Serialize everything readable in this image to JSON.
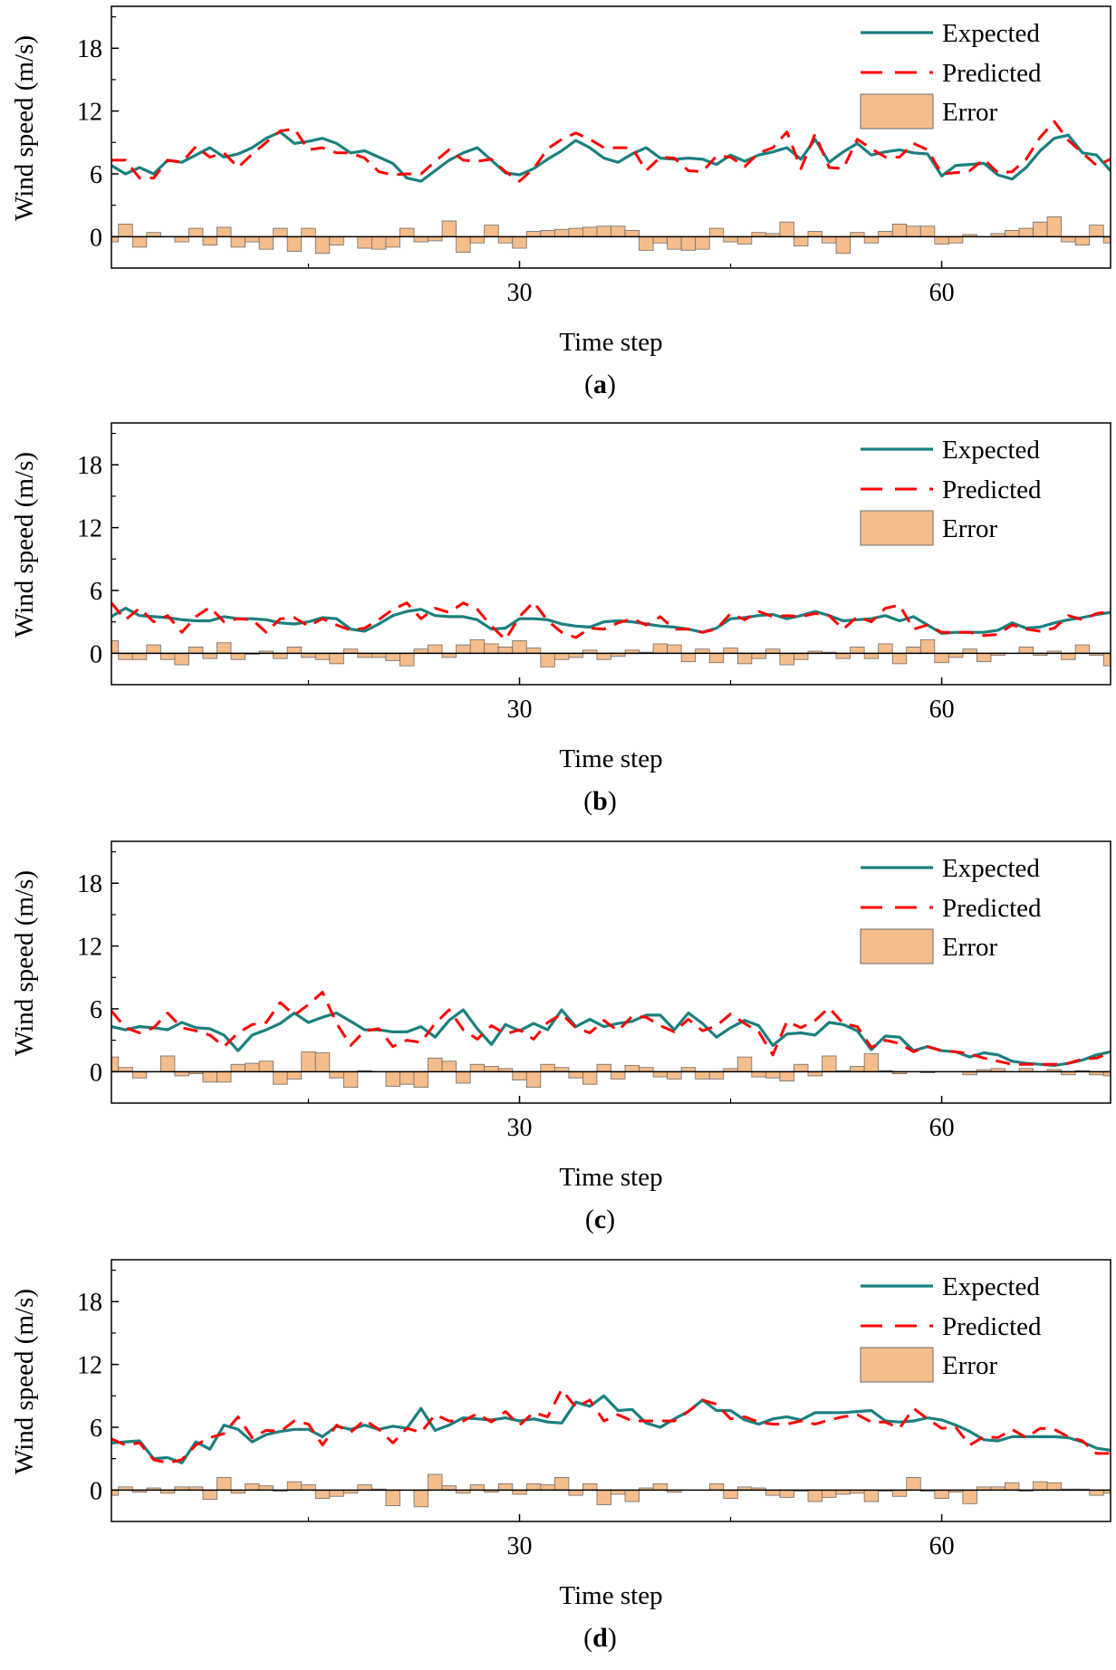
{
  "figure": {
    "colors": {
      "expected": "#1b7f7f",
      "predicted": "#ff0000",
      "error_fill": "#f5bd8b",
      "error_stroke": "#6b6b6b",
      "axis": "#000000"
    }
  },
  "chart_data": [
    {
      "type": "line",
      "panel": "a",
      "caption_open": "(",
      "caption_letter": "a",
      "caption_close": ")",
      "xlabel": "Time step",
      "ylabel": "Wind speed (m/s)",
      "xlim": [
        1,
        72
      ],
      "ylim": [
        -3,
        22
      ],
      "xticks": [
        30,
        60
      ],
      "yticks": [
        0,
        6,
        12,
        18
      ],
      "legend": [
        "Expected",
        "Predicted",
        "Error"
      ],
      "legend_position": "top-right",
      "x_start": 1,
      "series": [
        {
          "name": "Expected",
          "values": [
            6.8,
            6.0,
            6.6,
            6.0,
            7.3,
            7.1,
            7.8,
            8.5,
            7.6,
            7.9,
            8.5,
            9.4,
            10.0,
            8.9,
            9.1,
            9.4,
            8.9,
            8.0,
            8.2,
            7.6,
            7.0,
            5.6,
            5.3,
            6.3,
            7.3,
            8.0,
            8.5,
            7.3,
            6.1,
            5.9,
            6.5,
            7.4,
            8.2,
            9.2,
            8.5,
            7.5,
            7.1,
            7.9,
            8.5,
            7.5,
            7.4,
            7.5,
            7.4,
            6.9,
            7.8,
            7.2,
            7.8,
            8.1,
            8.5,
            7.4,
            9.3,
            7.1,
            8.1,
            8.9,
            7.8,
            8.1,
            8.3,
            8.0,
            7.9,
            5.8,
            6.8,
            6.9,
            7.0,
            5.9,
            5.5,
            6.6,
            8.2,
            9.4,
            9.7,
            8.0,
            7.8,
            6.3
          ]
        },
        {
          "name": "Predicted",
          "values": [
            7.3,
            7.3,
            5.6,
            5.6,
            7.3,
            7.1,
            8.6,
            7.6,
            8.0,
            6.6,
            7.9,
            9.0,
            10.1,
            10.3,
            8.3,
            8.5,
            8.0,
            8.0,
            7.5,
            6.2,
            5.9,
            6.0,
            6.0,
            7.2,
            8.3,
            7.3,
            7.2,
            7.4,
            6.2,
            5.3,
            6.5,
            8.4,
            9.3,
            9.9,
            9.3,
            8.5,
            8.5,
            8.5,
            6.3,
            7.6,
            7.5,
            6.3,
            6.2,
            7.7,
            7.6,
            6.7,
            8.0,
            8.5,
            10.0,
            6.5,
            9.8,
            6.6,
            6.5,
            9.3,
            8.4,
            7.6,
            7.6,
            8.9,
            8.3,
            6.0,
            6.1,
            6.3,
            7.4,
            6.1,
            6.2,
            7.4,
            9.5,
            11.0,
            9.2,
            8.0,
            6.8,
            7.4
          ]
        },
        {
          "name": "Error",
          "values": [
            -0.5,
            1.2,
            -1.0,
            0.4,
            0.0,
            -0.5,
            0.8,
            -0.8,
            0.9,
            -1.0,
            -0.5,
            -1.2,
            0.8,
            -1.4,
            0.8,
            -1.6,
            -0.8,
            0.0,
            -1.1,
            -1.2,
            -1.0,
            0.8,
            -0.5,
            -0.4,
            1.5,
            -1.5,
            -0.6,
            1.1,
            -0.6,
            -1.1,
            0.5,
            0.6,
            0.7,
            0.8,
            0.9,
            1.0,
            1.0,
            0.6,
            -1.3,
            -0.6,
            -1.2,
            -1.3,
            -1.2,
            0.8,
            -0.5,
            -0.7,
            0.4,
            0.3,
            1.4,
            -0.9,
            0.5,
            -0.6,
            -1.6,
            0.4,
            -0.6,
            0.5,
            1.2,
            1.0,
            1.0,
            -0.7,
            -0.6,
            0.2,
            0.0,
            0.3,
            0.6,
            0.8,
            1.4,
            1.9,
            -0.5,
            -0.8,
            1.1,
            -0.6
          ]
        }
      ]
    },
    {
      "type": "line",
      "panel": "b",
      "caption_open": "(",
      "caption_letter": "b",
      "caption_close": ")",
      "xlabel": "Time step",
      "ylabel": "Wind speed (m/s)",
      "xlim": [
        1,
        72
      ],
      "ylim": [
        -3,
        22
      ],
      "xticks": [
        30,
        60
      ],
      "yticks": [
        0,
        6,
        12,
        18
      ],
      "legend": [
        "Expected",
        "Predicted",
        "Error"
      ],
      "legend_position": "top-right",
      "x_start": 1,
      "series": [
        {
          "name": "Expected",
          "values": [
            3.5,
            4.3,
            3.6,
            3.5,
            3.4,
            3.2,
            3.1,
            3.1,
            3.5,
            3.3,
            3.3,
            3.2,
            2.9,
            2.8,
            3.0,
            3.4,
            3.3,
            2.3,
            2.1,
            2.8,
            3.6,
            4.0,
            4.2,
            3.6,
            3.5,
            3.5,
            3.2,
            2.3,
            2.4,
            3.3,
            3.3,
            3.2,
            2.8,
            2.6,
            2.5,
            3.0,
            3.1,
            3.0,
            2.8,
            2.6,
            2.5,
            2.3,
            2.0,
            2.4,
            3.3,
            3.4,
            3.6,
            3.7,
            3.3,
            3.6,
            4.0,
            3.6,
            3.1,
            3.2,
            3.3,
            3.6,
            3.1,
            3.5,
            2.7,
            1.9,
            2.0,
            2.0,
            2.0,
            2.2,
            2.9,
            2.4,
            2.5,
            2.9,
            3.2,
            3.4,
            3.7,
            3.9
          ]
        },
        {
          "name": "Predicted",
          "values": [
            4.8,
            3.2,
            4.3,
            3.0,
            3.6,
            2.0,
            3.5,
            4.4,
            3.0,
            3.3,
            3.2,
            2.0,
            3.3,
            3.4,
            2.6,
            3.3,
            2.7,
            2.2,
            2.4,
            3.2,
            4.2,
            4.8,
            3.3,
            4.3,
            3.9,
            4.8,
            4.2,
            2.6,
            1.3,
            3.5,
            4.9,
            3.1,
            2.0,
            1.5,
            2.4,
            2.3,
            2.9,
            3.3,
            2.7,
            3.5,
            2.3,
            2.3,
            2.0,
            2.3,
            3.8,
            3.2,
            4.0,
            3.5,
            3.6,
            3.5,
            3.8,
            3.6,
            2.3,
            3.5,
            3.0,
            4.3,
            4.6,
            2.3,
            2.7,
            2.0,
            2.0,
            2.0,
            1.7,
            1.8,
            2.7,
            2.3,
            2.1,
            2.4,
            3.6,
            3.2,
            3.8,
            4.0
          ]
        },
        {
          "name": "Error",
          "values": [
            1.2,
            -0.6,
            -0.6,
            0.8,
            -0.6,
            -1.1,
            0.6,
            -0.5,
            1.0,
            -0.6,
            -0.1,
            0.2,
            -0.5,
            0.6,
            -0.4,
            -0.6,
            -1.0,
            0.4,
            -0.4,
            -0.4,
            -0.7,
            -1.2,
            0.4,
            0.8,
            -0.4,
            0.8,
            1.3,
            0.9,
            0.6,
            1.2,
            0.5,
            -1.3,
            -0.6,
            -0.4,
            0.3,
            -0.6,
            -0.3,
            0.3,
            0.1,
            0.9,
            0.8,
            -0.8,
            0.4,
            -0.9,
            0.5,
            -1.0,
            -0.5,
            0.4,
            -1.1,
            -0.6,
            0.2,
            0.1,
            -0.5,
            0.6,
            -0.5,
            0.9,
            -1.0,
            0.6,
            1.3,
            -0.9,
            -0.4,
            0.4,
            -0.8,
            -0.2,
            0.0,
            0.6,
            -0.2,
            0.2,
            -0.6,
            0.8,
            -0.2,
            -1.2
          ]
        }
      ]
    },
    {
      "type": "line",
      "panel": "c",
      "caption_open": "(",
      "caption_letter": "c",
      "caption_close": ")",
      "xlabel": "Time step",
      "ylabel": "Wind speed (m/s)",
      "xlim": [
        1,
        72
      ],
      "ylim": [
        -3,
        22
      ],
      "xticks": [
        30,
        60
      ],
      "yticks": [
        0,
        6,
        12,
        18
      ],
      "legend": [
        "Expected",
        "Predicted",
        "Error"
      ],
      "legend_position": "top-right",
      "x_start": 1,
      "series": [
        {
          "name": "Expected",
          "values": [
            4.3,
            4.0,
            4.3,
            4.2,
            4.0,
            4.7,
            4.2,
            4.1,
            3.5,
            2.0,
            3.5,
            4.0,
            4.6,
            5.6,
            4.7,
            5.2,
            5.6,
            4.8,
            4.0,
            4.0,
            3.8,
            3.8,
            4.3,
            3.3,
            4.9,
            5.9,
            4.1,
            2.6,
            4.5,
            3.9,
            4.6,
            4.0,
            5.9,
            4.3,
            5.0,
            4.3,
            4.6,
            4.8,
            5.4,
            5.4,
            4.0,
            5.6,
            4.6,
            3.3,
            4.2,
            4.9,
            4.4,
            2.5,
            3.6,
            3.7,
            3.5,
            4.7,
            4.5,
            3.9,
            2.1,
            3.4,
            3.3,
            2.0,
            2.4,
            2.0,
            1.9,
            1.4,
            1.8,
            1.6,
            1.0,
            0.8,
            0.7,
            0.6,
            0.8,
            1.1,
            1.6,
            1.9
          ]
        },
        {
          "name": "Predicted",
          "values": [
            5.8,
            4.2,
            3.7,
            4.2,
            5.6,
            4.2,
            3.9,
            3.5,
            2.4,
            3.7,
            4.5,
            4.7,
            6.6,
            5.4,
            6.4,
            7.6,
            4.6,
            2.5,
            3.9,
            4.1,
            2.4,
            3.0,
            2.8,
            4.6,
            5.9,
            4.0,
            3.1,
            4.4,
            3.6,
            4.0,
            3.1,
            4.7,
            5.5,
            4.2,
            3.7,
            4.9,
            3.9,
            5.3,
            5.2,
            4.4,
            3.8,
            5.0,
            3.9,
            4.4,
            5.5,
            4.6,
            3.8,
            1.6,
            4.8,
            4.2,
            4.9,
            6.1,
            4.6,
            4.3,
            2.3,
            3.0,
            2.7,
            1.9,
            2.4,
            2.0,
            1.9,
            1.7,
            1.3,
            1.0,
            0.7,
            0.7,
            0.7,
            0.7,
            0.8,
            1.2,
            1.3,
            1.8
          ]
        },
        {
          "name": "Error",
          "values": [
            1.4,
            0.4,
            -0.6,
            0.0,
            1.5,
            -0.4,
            -0.2,
            -1.0,
            -1.0,
            0.7,
            0.8,
            1.0,
            -1.2,
            -0.7,
            1.9,
            1.8,
            -0.6,
            -1.5,
            0.1,
            0.0,
            -1.4,
            -1.2,
            -1.5,
            1.3,
            1.0,
            -1.1,
            0.7,
            0.5,
            0.3,
            -0.8,
            -1.5,
            0.7,
            0.4,
            -0.6,
            -1.2,
            0.7,
            -0.7,
            0.6,
            0.4,
            -0.5,
            -0.7,
            0.4,
            -0.7,
            -0.7,
            0.3,
            1.4,
            -0.5,
            -0.6,
            -0.9,
            0.7,
            -0.4,
            1.5,
            0.1,
            0.5,
            1.7,
            0.1,
            -0.2,
            0.0,
            -0.1,
            0.0,
            0.0,
            -0.3,
            0.2,
            0.3,
            0.0,
            0.3,
            0.0,
            0.2,
            -0.3,
            0.1,
            -0.3,
            -0.4
          ]
        }
      ]
    },
    {
      "type": "line",
      "panel": "d",
      "caption_open": "(",
      "caption_letter": "d",
      "caption_close": ")",
      "xlabel": "Time step",
      "ylabel": "Wind speed (m/s)",
      "xlim": [
        1,
        72
      ],
      "ylim": [
        -3,
        22
      ],
      "xticks": [
        30,
        60
      ],
      "yticks": [
        0,
        6,
        12,
        18
      ],
      "legend": [
        "Expected",
        "Predicted",
        "Error"
      ],
      "legend_position": "top-right",
      "x_start": 1,
      "series": [
        {
          "name": "Expected",
          "values": [
            4.5,
            4.6,
            4.7,
            3.0,
            3.1,
            2.6,
            4.6,
            3.9,
            6.2,
            5.8,
            4.6,
            5.3,
            5.6,
            5.8,
            5.8,
            5.1,
            6.1,
            5.8,
            6.2,
            5.8,
            6.1,
            5.9,
            7.8,
            5.7,
            6.2,
            6.9,
            6.8,
            6.7,
            6.9,
            6.6,
            6.8,
            6.5,
            6.4,
            8.4,
            8.0,
            9.0,
            7.6,
            7.7,
            6.4,
            6.0,
            6.8,
            7.5,
            8.6,
            7.6,
            7.6,
            6.7,
            6.3,
            6.8,
            7.0,
            6.7,
            7.4,
            7.4,
            7.4,
            7.5,
            7.6,
            6.6,
            6.5,
            6.6,
            6.9,
            6.7,
            6.2,
            5.6,
            4.8,
            4.7,
            5.1,
            5.1,
            5.1,
            5.1,
            5.0,
            4.6,
            4.0,
            3.8
          ]
        },
        {
          "name": "Predicted",
          "values": [
            4.9,
            4.3,
            4.5,
            2.9,
            2.6,
            2.9,
            4.3,
            5.0,
            5.4,
            7.0,
            5.0,
            5.7,
            5.6,
            6.6,
            6.3,
            4.3,
            6.2,
            5.5,
            6.7,
            5.8,
            4.5,
            5.9,
            5.5,
            7.2,
            6.6,
            6.6,
            7.3,
            6.5,
            7.5,
            6.2,
            7.4,
            7.0,
            9.6,
            7.9,
            8.6,
            6.6,
            7.2,
            6.6,
            6.6,
            6.6,
            6.6,
            7.5,
            8.6,
            8.2,
            6.8,
            7.0,
            6.5,
            6.3,
            6.3,
            6.6,
            6.3,
            6.7,
            7.0,
            7.2,
            6.5,
            6.5,
            5.9,
            7.8,
            6.8,
            5.9,
            6.0,
            4.3,
            5.1,
            5.0,
            5.8,
            5.0,
            5.9,
            5.8,
            5.1,
            4.7,
            3.5,
            3.5
          ]
        },
        {
          "name": "Error",
          "values": [
            -0.5,
            0.3,
            -0.2,
            0.2,
            -0.3,
            0.3,
            0.3,
            -0.9,
            1.2,
            -0.3,
            0.6,
            0.4,
            -0.1,
            0.8,
            0.5,
            -0.8,
            -0.6,
            -0.3,
            0.5,
            0.1,
            -1.5,
            0.0,
            -1.6,
            1.5,
            0.4,
            -0.3,
            0.5,
            -0.2,
            0.6,
            -0.4,
            0.6,
            0.5,
            1.2,
            -0.5,
            0.6,
            -1.4,
            -0.4,
            -1.1,
            0.2,
            0.6,
            -0.2,
            0.0,
            0.0,
            0.6,
            -0.8,
            0.3,
            0.2,
            -0.5,
            -0.7,
            -0.1,
            -1.1,
            -0.7,
            -0.4,
            -0.3,
            -1.1,
            -0.1,
            -0.6,
            1.2,
            -0.1,
            -0.8,
            -0.2,
            -1.3,
            0.3,
            0.3,
            0.7,
            -0.1,
            0.8,
            0.7,
            0.1,
            0.1,
            -0.5,
            -0.3
          ]
        }
      ]
    }
  ]
}
